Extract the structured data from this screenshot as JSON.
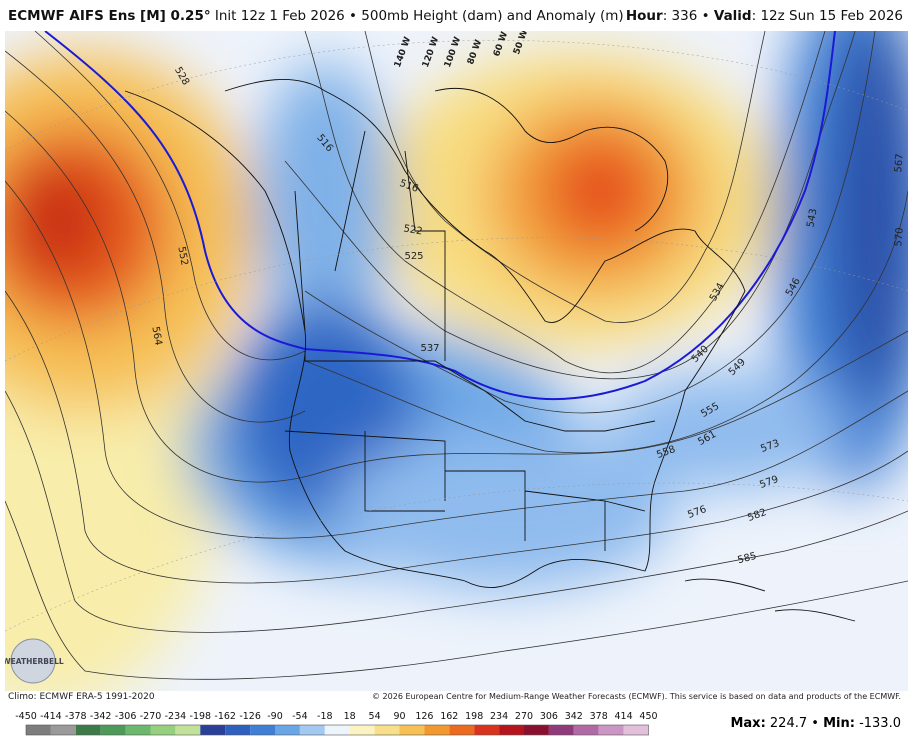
{
  "header": {
    "title_bold": "ECMWF AIFS Ens [M] 0.25°",
    "title_rest": "Init 12z 1 Feb 2026 • 500mb Height (dam) and Anomaly (m)",
    "hour_label": "Hour",
    "hour_rest": ": 336 • ",
    "valid_label": "Valid",
    "valid_rest": ": 12z Sun 15 Feb 2026"
  },
  "map": {
    "contour_labels": [
      "528",
      "552",
      "564",
      "516",
      "516",
      "522",
      "525",
      "537",
      "534",
      "540",
      "543",
      "546",
      "549",
      "555",
      "561",
      "558",
      "567",
      "570",
      "573",
      "579",
      "576",
      "582",
      "585"
    ],
    "longitude_labels": [
      "140 W",
      "120 W",
      "100 W",
      "80 W",
      "60 W",
      "50 W"
    ],
    "logo": "WEATHERBELL"
  },
  "footer": {
    "climo": "Climo: ECMWF ERA-5 1991-2020",
    "copyright": "© 2026 European Centre for Medium-Range Weather Forecasts (ECMWF). This service is based on data and products of the ECMWF.",
    "max_label": "Max:",
    "max": 224.7,
    "sep": "•",
    "min_label": "Min:",
    "min": "-133.0"
  },
  "colorbar": {
    "labels": [
      -450,
      -414,
      -378,
      -342,
      -306,
      -270,
      -234,
      -198,
      -162,
      -126,
      -90,
      -54,
      -18,
      18,
      54,
      90,
      126,
      162,
      198,
      234,
      270,
      306,
      342,
      378,
      414,
      450
    ],
    "colors": [
      "#7d7d7d",
      "#9a9a9a",
      "#3d7a4a",
      "#4f9a5a",
      "#6cb86e",
      "#96cf7e",
      "#c2e29b",
      "#2a3f99",
      "#2f5fbf",
      "#3f80d6",
      "#6aa6e6",
      "#a3c8f1",
      "#eef4fb",
      "#fbf3c2",
      "#f8e08a",
      "#f6c055",
      "#f3972f",
      "#ec6a1f",
      "#d8331c",
      "#b5141c",
      "#8a1030",
      "#8f3a7a",
      "#b06aa6",
      "#cc96c4",
      "#e2c0dc"
    ]
  }
}
